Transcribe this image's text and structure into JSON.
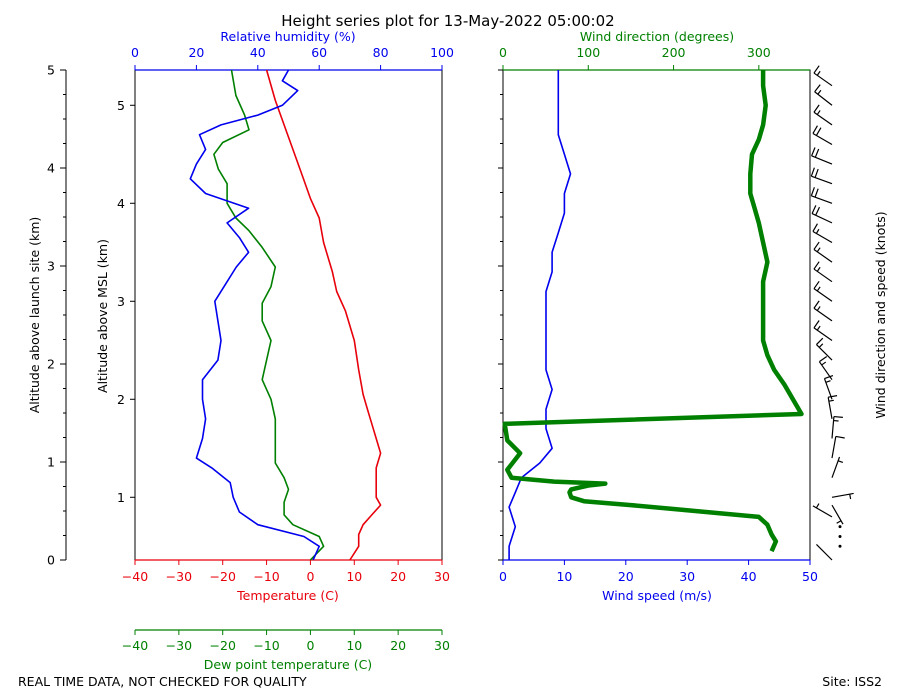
{
  "colors": {
    "red": "#e8000b",
    "blue": "#0000ee",
    "green": "#008000",
    "black": "#000000"
  },
  "footer": {
    "left": "REAL TIME DATA, NOT CHECKED FOR QUALITY",
    "right": "Site: ISS2"
  },
  "chart_data": {
    "title": "Height series plot for 13-May-2022 05:00:02",
    "type": "line",
    "left_panel": {
      "outer_axis": {
        "label": "Altitude above launch site (km)",
        "range": [
          0,
          5
        ],
        "ticks": [
          0,
          1,
          2,
          3,
          4,
          5
        ]
      },
      "y_axis": {
        "label": "Altitude above MSL (km)",
        "range": [
          0.36,
          5.36
        ],
        "ticks": [
          1,
          2,
          3,
          4,
          5
        ]
      },
      "x_top": {
        "label": "Relative humidity (%)",
        "range": [
          0,
          100
        ],
        "ticks": [
          0,
          20,
          40,
          60,
          80,
          100
        ],
        "color": "blue"
      },
      "x_bottom": {
        "label": "Temperature (C)",
        "range": [
          -40,
          30
        ],
        "ticks": [
          -40,
          -30,
          -20,
          -10,
          0,
          10,
          20,
          30
        ],
        "color": "red"
      },
      "x_extra": {
        "label": "Dew point temperature (C)",
        "range": [
          -40,
          30
        ],
        "ticks": [
          -40,
          -30,
          -20,
          -10,
          0,
          10,
          20,
          30
        ],
        "color": "green"
      },
      "series": [
        {
          "name": "Temperature",
          "axis": "x_bottom",
          "color": "red",
          "points": [
            [
              9,
              0.36
            ],
            [
              11,
              0.5
            ],
            [
              11,
              0.62
            ],
            [
              12,
              0.72
            ],
            [
              14,
              0.82
            ],
            [
              16,
              0.92
            ],
            [
              15,
              1.0
            ],
            [
              15,
              1.1
            ],
            [
              15,
              1.2
            ],
            [
              15,
              1.3
            ],
            [
              16,
              1.45
            ],
            [
              15,
              1.6
            ],
            [
              14,
              1.75
            ],
            [
              13,
              1.9
            ],
            [
              12,
              2.05
            ],
            [
              11,
              2.3
            ],
            [
              10,
              2.6
            ],
            [
              8,
              2.9
            ],
            [
              6,
              3.1
            ],
            [
              5,
              3.3
            ],
            [
              3,
              3.6
            ],
            [
              2,
              3.85
            ],
            [
              0,
              4.05
            ],
            [
              -2,
              4.3
            ],
            [
              -4,
              4.55
            ],
            [
              -6,
              4.8
            ],
            [
              -8,
              5.05
            ],
            [
              -10,
              5.36
            ]
          ]
        },
        {
          "name": "Dew point temperature",
          "axis": "x_extra",
          "color": "green",
          "points": [
            [
              0,
              0.36
            ],
            [
              3,
              0.5
            ],
            [
              2,
              0.6
            ],
            [
              -4,
              0.72
            ],
            [
              -6,
              0.82
            ],
            [
              -6,
              0.95
            ],
            [
              -5,
              1.08
            ],
            [
              -6,
              1.2
            ],
            [
              -8,
              1.35
            ],
            [
              -8,
              1.6
            ],
            [
              -8,
              1.8
            ],
            [
              -9,
              2.0
            ],
            [
              -11,
              2.2
            ],
            [
              -10,
              2.4
            ],
            [
              -9,
              2.6
            ],
            [
              -11,
              2.8
            ],
            [
              -11,
              2.98
            ],
            [
              -9,
              3.15
            ],
            [
              -8,
              3.35
            ],
            [
              -11,
              3.55
            ],
            [
              -14,
              3.72
            ],
            [
              -17,
              3.85
            ],
            [
              -19,
              4.0
            ],
            [
              -19,
              4.2
            ],
            [
              -21,
              4.35
            ],
            [
              -22,
              4.5
            ],
            [
              -20,
              4.62
            ],
            [
              -14,
              4.75
            ],
            [
              -15,
              4.9
            ],
            [
              -17,
              5.1
            ],
            [
              -18,
              5.36
            ]
          ]
        },
        {
          "name": "Relative humidity",
          "axis": "x_top",
          "color": "blue",
          "points": [
            [
              58,
              0.36
            ],
            [
              60,
              0.5
            ],
            [
              55,
              0.6
            ],
            [
              40,
              0.72
            ],
            [
              34,
              0.85
            ],
            [
              32,
              1.0
            ],
            [
              31,
              1.15
            ],
            [
              25,
              1.3
            ],
            [
              20,
              1.4
            ],
            [
              22,
              1.6
            ],
            [
              23,
              1.8
            ],
            [
              22,
              2.0
            ],
            [
              22,
              2.2
            ],
            [
              27,
              2.4
            ],
            [
              28,
              2.6
            ],
            [
              27,
              2.8
            ],
            [
              26,
              3.0
            ],
            [
              30,
              3.2
            ],
            [
              33,
              3.35
            ],
            [
              37,
              3.5
            ],
            [
              34,
              3.65
            ],
            [
              30,
              3.8
            ],
            [
              37,
              3.95
            ],
            [
              23,
              4.1
            ],
            [
              18,
              4.25
            ],
            [
              20,
              4.4
            ],
            [
              23,
              4.55
            ],
            [
              21,
              4.7
            ],
            [
              28,
              4.8
            ],
            [
              40,
              4.9
            ],
            [
              48,
              5.0
            ],
            [
              53,
              5.15
            ],
            [
              48,
              5.25
            ],
            [
              50,
              5.36
            ]
          ]
        }
      ]
    },
    "right_panel": {
      "x_top": {
        "label": "Wind direction (degrees)",
        "range": [
          0,
          360
        ],
        "ticks": [
          0,
          100,
          200,
          300
        ],
        "color": "green"
      },
      "x_bottom": {
        "label": "Wind speed (m/s)",
        "range": [
          0,
          50
        ],
        "ticks": [
          0,
          10,
          20,
          30,
          40,
          50
        ],
        "color": "blue"
      },
      "series": [
        {
          "name": "Wind speed",
          "axis": "x_bottom",
          "color": "blue",
          "points": [
            [
              1,
              0.36
            ],
            [
              1,
              0.5
            ],
            [
              2,
              0.7
            ],
            [
              1,
              0.9
            ],
            [
              2,
              1.05
            ],
            [
              3,
              1.2
            ],
            [
              6,
              1.35
            ],
            [
              8,
              1.5
            ],
            [
              7,
              1.7
            ],
            [
              7,
              1.9
            ],
            [
              8,
              2.1
            ],
            [
              7,
              2.3
            ],
            [
              7,
              2.5
            ],
            [
              7,
              2.7
            ],
            [
              7,
              2.9
            ],
            [
              7,
              3.1
            ],
            [
              8,
              3.3
            ],
            [
              8,
              3.5
            ],
            [
              9,
              3.7
            ],
            [
              10,
              3.9
            ],
            [
              10,
              4.1
            ],
            [
              11,
              4.3
            ],
            [
              10,
              4.5
            ],
            [
              9,
              4.7
            ],
            [
              9,
              4.9
            ],
            [
              9,
              5.1
            ],
            [
              9,
              5.36
            ]
          ]
        },
        {
          "name": "Wind direction",
          "axis": "x_top",
          "color": "green",
          "points": [
            [
              315,
              0.45
            ],
            [
              320,
              0.55
            ],
            [
              315,
              0.62
            ],
            [
              310,
              0.72
            ],
            [
              300,
              0.8
            ],
            [
              200,
              0.88
            ],
            [
              150,
              0.92
            ],
            [
              95,
              0.96
            ],
            [
              80,
              1.0
            ],
            [
              78,
              1.05
            ],
            [
              80,
              1.08
            ],
            [
              100,
              1.12
            ],
            [
              120,
              1.14
            ],
            [
              60,
              1.16
            ],
            [
              10,
              1.2
            ],
            [
              5,
              1.28
            ],
            [
              20,
              1.45
            ],
            [
              5,
              1.58
            ],
            [
              2,
              1.75
            ],
            [
              350,
              1.85
            ],
            [
              340,
              2.0
            ],
            [
              330,
              2.15
            ],
            [
              318,
              2.3
            ],
            [
              310,
              2.45
            ],
            [
              305,
              2.6
            ],
            [
              305,
              2.8
            ],
            [
              305,
              3.0
            ],
            [
              305,
              3.2
            ],
            [
              310,
              3.4
            ],
            [
              305,
              3.6
            ],
            [
              300,
              3.8
            ],
            [
              295,
              3.95
            ],
            [
              290,
              4.1
            ],
            [
              290,
              4.3
            ],
            [
              292,
              4.5
            ],
            [
              300,
              4.65
            ],
            [
              305,
              4.8
            ],
            [
              308,
              5.0
            ],
            [
              305,
              5.2
            ],
            [
              305,
              5.36
            ]
          ]
        }
      ]
    },
    "barb_axis_label": "Wind direction and speed (knots)",
    "barbs": [
      {
        "alt": 0.36,
        "dir": 315,
        "spd": 4
      },
      {
        "alt": 0.5,
        "dir": 0,
        "spd": 0
      },
      {
        "alt": 0.6,
        "dir": 0,
        "spd": 0
      },
      {
        "alt": 0.7,
        "dir": 0,
        "spd": 0
      },
      {
        "alt": 0.8,
        "dir": 300,
        "spd": 5
      },
      {
        "alt": 0.92,
        "dir": 150,
        "spd": 5
      },
      {
        "alt": 1.0,
        "dir": 80,
        "spd": 5
      },
      {
        "alt": 1.2,
        "dir": 20,
        "spd": 5
      },
      {
        "alt": 1.4,
        "dir": 10,
        "spd": 10
      },
      {
        "alt": 1.6,
        "dir": 5,
        "spd": 15
      },
      {
        "alt": 1.8,
        "dir": 350,
        "spd": 15
      },
      {
        "alt": 2.0,
        "dir": 340,
        "spd": 15
      },
      {
        "alt": 2.2,
        "dir": 325,
        "spd": 15
      },
      {
        "alt": 2.4,
        "dir": 315,
        "spd": 15
      },
      {
        "alt": 2.6,
        "dir": 305,
        "spd": 15
      },
      {
        "alt": 2.8,
        "dir": 305,
        "spd": 15
      },
      {
        "alt": 3.0,
        "dir": 305,
        "spd": 15
      },
      {
        "alt": 3.2,
        "dir": 305,
        "spd": 15
      },
      {
        "alt": 3.4,
        "dir": 305,
        "spd": 15
      },
      {
        "alt": 3.6,
        "dir": 300,
        "spd": 15
      },
      {
        "alt": 3.8,
        "dir": 295,
        "spd": 20
      },
      {
        "alt": 4.0,
        "dir": 290,
        "spd": 20
      },
      {
        "alt": 4.2,
        "dir": 290,
        "spd": 20
      },
      {
        "alt": 4.4,
        "dir": 292,
        "spd": 20
      },
      {
        "alt": 4.6,
        "dir": 300,
        "spd": 20
      },
      {
        "alt": 4.8,
        "dir": 305,
        "spd": 15
      },
      {
        "alt": 5.0,
        "dir": 308,
        "spd": 15
      },
      {
        "alt": 5.2,
        "dir": 305,
        "spd": 15
      }
    ]
  }
}
